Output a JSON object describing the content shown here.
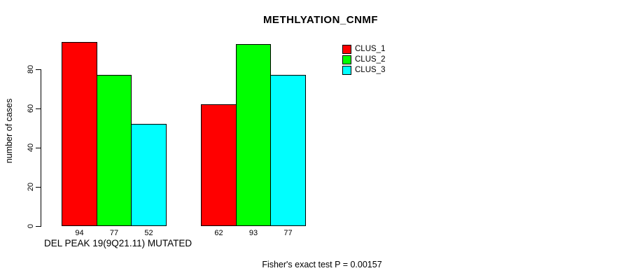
{
  "chart_data": {
    "type": "bar",
    "title": "METHLYATION_CNMF",
    "ylabel": "number of cases",
    "xlabel": "DEL PEAK 19(9Q21.11) MUTATED",
    "footnote": "Fisher's exact test P = 0.00157",
    "yticks": [
      0,
      20,
      40,
      60,
      80
    ],
    "ylim": [
      0,
      94
    ],
    "grid": false,
    "legend_position": "top-right",
    "background_color": "#ffffff",
    "axis_color": "#000000",
    "bar_border_color": "#000000",
    "groups": 2,
    "series": [
      {
        "name": "CLUS_1",
        "color": "#ff0000",
        "values": [
          94,
          62
        ]
      },
      {
        "name": "CLUS_2",
        "color": "#00ff00",
        "values": [
          77,
          93
        ]
      },
      {
        "name": "CLUS_3",
        "color": "#00ffff",
        "values": [
          52,
          77
        ]
      }
    ],
    "bar_value_labels": [
      [
        "94",
        "77",
        "52"
      ],
      [
        "62",
        "93",
        "77"
      ]
    ]
  }
}
